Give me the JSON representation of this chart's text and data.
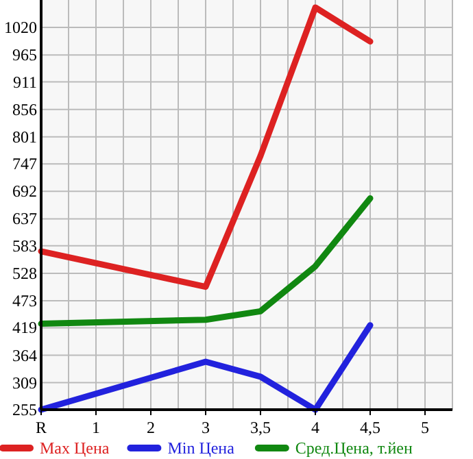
{
  "chart_data": {
    "type": "line",
    "categories": [
      "R",
      "1",
      "2",
      "3",
      "3,5",
      "4",
      "4,5",
      "5"
    ],
    "series": [
      {
        "name": "Max Цена",
        "color": "#dd2222",
        "values": [
          572,
          null,
          null,
          501,
          763,
          1060,
          992,
          null
        ]
      },
      {
        "name": "Min Цена",
        "color": "#2222dd",
        "values": [
          255,
          null,
          null,
          351,
          321,
          255,
          424,
          null
        ]
      },
      {
        "name": "Сред.Цена, т.йен",
        "color": "#118811",
        "values": [
          427,
          null,
          null,
          435,
          452,
          542,
          678,
          null
        ]
      }
    ],
    "ylim": [
      255,
      1075
    ],
    "yticks": [
      255,
      309,
      364,
      419,
      473,
      528,
      583,
      637,
      692,
      747,
      801,
      856,
      911,
      965,
      1020
    ],
    "grid": true,
    "legend": "bottom",
    "marker": "none",
    "line_style": "solid"
  }
}
